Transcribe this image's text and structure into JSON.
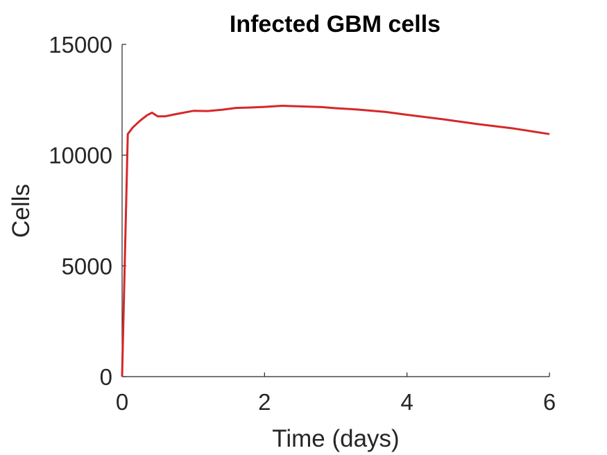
{
  "chart_data": {
    "type": "line",
    "title": "Infected GBM cells",
    "xlabel": "Time (days)",
    "ylabel": "Cells",
    "xlim": [
      0,
      6
    ],
    "ylim": [
      0,
      15000
    ],
    "xticks": [
      0,
      2,
      4,
      6
    ],
    "xtick_labels": [
      "0",
      "2",
      "4",
      "6"
    ],
    "yticks": [
      0,
      5000,
      10000,
      15000
    ],
    "ytick_labels": [
      "0",
      "5000",
      "10000",
      "15000"
    ],
    "grid": false,
    "series": [
      {
        "color": "#d62728",
        "x": [
          0,
          0.08,
          0.15,
          0.25,
          0.35,
          0.42,
          0.5,
          0.6,
          0.75,
          1.0,
          1.2,
          1.4,
          1.6,
          1.8,
          2.0,
          2.25,
          2.5,
          2.8,
          3.0,
          3.3,
          3.7,
          4.0,
          4.5,
          5.0,
          5.5,
          6.0
        ],
        "y": [
          0,
          10950,
          11250,
          11550,
          11800,
          11920,
          11750,
          11750,
          11850,
          12000,
          11990,
          12050,
          12130,
          12150,
          12180,
          12230,
          12200,
          12170,
          12120,
          12060,
          11950,
          11820,
          11620,
          11400,
          11200,
          10950
        ]
      }
    ]
  }
}
